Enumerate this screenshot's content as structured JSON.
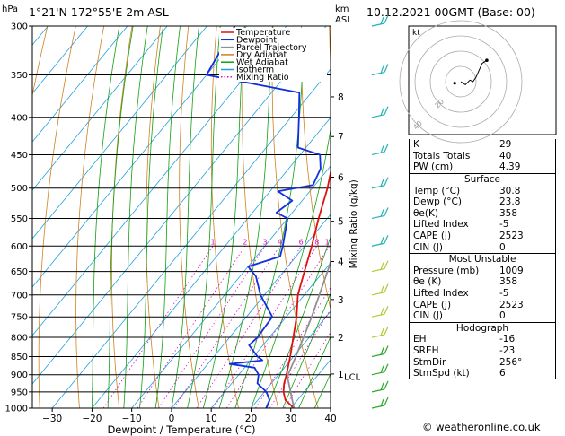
{
  "header": {
    "location": "1°21'N  172°55'E  2m  ASL",
    "datetime": "10.12.2021  00GMT  (Base: 00)"
  },
  "units": {
    "pressure": "hPa",
    "height": "km\nASL"
  },
  "footer": "© weatheronline.co.uk",
  "chart_data": {
    "type": "line",
    "subtype": "skew-T log-p diagram",
    "xlabel": "Dewpoint / Temperature (°C)",
    "ylabel": "",
    "mixing_ratio_label": "Mixing Ratio (g/kg)",
    "xlim": [
      -35,
      40
    ],
    "x_ticks": [
      -30,
      -20,
      -10,
      0,
      10,
      20,
      30,
      40
    ],
    "y_scale": "log",
    "ylim": [
      1000,
      300
    ],
    "pressure_levels": [
      300,
      350,
      400,
      450,
      500,
      550,
      600,
      650,
      700,
      750,
      800,
      850,
      900,
      950,
      1000
    ],
    "height_km_ticks": [
      {
        "label": "8",
        "p": 375
      },
      {
        "label": "7",
        "p": 425
      },
      {
        "label": "6",
        "p": 483
      },
      {
        "label": "5",
        "p": 555
      },
      {
        "label": "4",
        "p": 630
      },
      {
        "label": "3",
        "p": 710
      },
      {
        "label": "2",
        "p": 800
      },
      {
        "label": "1",
        "p": 898
      }
    ],
    "lcl": {
      "label": "LCL",
      "p": 905
    },
    "mixing_ratio_lines": [
      {
        "label": "1",
        "g": 1
      },
      {
        "label": "2",
        "g": 2
      },
      {
        "label": "3",
        "g": 3
      },
      {
        "label": "4",
        "g": 4
      },
      {
        "label": "6",
        "g": 6
      },
      {
        "label": "8",
        "g": 8
      },
      {
        "label": "10",
        "g": 10
      },
      {
        "label": "16",
        "g": 16
      },
      {
        "label": "20",
        "g": 20
      },
      {
        "label": "25",
        "g": 25
      }
    ],
    "legend": [
      {
        "name": "Temperature",
        "color": "#e01010",
        "style": "solid"
      },
      {
        "name": "Dewpoint",
        "color": "#1030e0",
        "style": "solid"
      },
      {
        "name": "Parcel Trajectory",
        "color": "#909090",
        "style": "solid"
      },
      {
        "name": "Dry Adiabat",
        "color": "#d08020",
        "style": "solid"
      },
      {
        "name": "Wet Adiabat",
        "color": "#10a010",
        "style": "solid"
      },
      {
        "name": "Isotherm",
        "color": "#20a0e0",
        "style": "solid"
      },
      {
        "name": "Mixing Ratio",
        "color": "#e010c0",
        "style": "dotted"
      }
    ],
    "series": [
      {
        "name": "Temperature",
        "color": "#e01010",
        "points": [
          {
            "p": 1000,
            "t": 30.8
          },
          {
            "p": 975,
            "t": 27.0
          },
          {
            "p": 950,
            "t": 24.8
          },
          {
            "p": 925,
            "t": 23.2
          },
          {
            "p": 900,
            "t": 22.0
          },
          {
            "p": 850,
            "t": 19.2
          },
          {
            "p": 800,
            "t": 16.0
          },
          {
            "p": 750,
            "t": 12.6
          },
          {
            "p": 700,
            "t": 8.4
          },
          {
            "p": 650,
            "t": 5.2
          },
          {
            "p": 600,
            "t": 1.8
          },
          {
            "p": 550,
            "t": -2.2
          },
          {
            "p": 500,
            "t": -6.2
          },
          {
            "p": 450,
            "t": -11.4
          },
          {
            "p": 400,
            "t": -17.4
          },
          {
            "p": 370,
            "t": -21.2
          },
          {
            "p": 350,
            "t": -24.2
          },
          {
            "p": 300,
            "t": -33.0
          }
        ]
      },
      {
        "name": "Dewpoint",
        "color": "#1030e0",
        "points": [
          {
            "p": 1000,
            "t": 23.8
          },
          {
            "p": 975,
            "t": 23.0
          },
          {
            "p": 950,
            "t": 20.5
          },
          {
            "p": 925,
            "t": 16.5
          },
          {
            "p": 900,
            "t": 15.0
          },
          {
            "p": 880,
            "t": 12.5
          },
          {
            "p": 870,
            "t": 5.5
          },
          {
            "p": 860,
            "t": 13.0
          },
          {
            "p": 850,
            "t": 11.0
          },
          {
            "p": 820,
            "t": 6.5
          },
          {
            "p": 800,
            "t": 7.0
          },
          {
            "p": 750,
            "t": 6.5
          },
          {
            "p": 700,
            "t": -1.0
          },
          {
            "p": 660,
            "t": -6.0
          },
          {
            "p": 640,
            "t": -10.0
          },
          {
            "p": 620,
            "t": -4.0
          },
          {
            "p": 600,
            "t": -5.5
          },
          {
            "p": 550,
            "t": -10.0
          },
          {
            "p": 540,
            "t": -14.0
          },
          {
            "p": 520,
            "t": -12.5
          },
          {
            "p": 505,
            "t": -18.0
          },
          {
            "p": 495,
            "t": -10.5
          },
          {
            "p": 470,
            "t": -12.0
          },
          {
            "p": 450,
            "t": -15.0
          },
          {
            "p": 440,
            "t": -22.0
          },
          {
            "p": 400,
            "t": -28.0
          },
          {
            "p": 370,
            "t": -33.0
          },
          {
            "p": 350,
            "t": -60.0
          },
          {
            "p": 300,
            "t": -63.0
          }
        ]
      },
      {
        "name": "Parcel Trajectory",
        "color": "#909090",
        "points": [
          {
            "p": 1000,
            "t": 30.8
          },
          {
            "p": 905,
            "t": 22.6
          },
          {
            "p": 850,
            "t": 20.6
          },
          {
            "p": 800,
            "t": 18.6
          },
          {
            "p": 750,
            "t": 16.4
          },
          {
            "p": 700,
            "t": 13.8
          },
          {
            "p": 650,
            "t": 11.0
          },
          {
            "p": 600,
            "t": 7.8
          },
          {
            "p": 550,
            "t": 4.2
          },
          {
            "p": 500,
            "t": 0.0
          },
          {
            "p": 450,
            "t": -5.0
          },
          {
            "p": 400,
            "t": -11.0
          },
          {
            "p": 350,
            "t": -18.5
          },
          {
            "p": 300,
            "t": -27.0
          }
        ]
      }
    ],
    "wind_barbs": [
      {
        "p": 300
      },
      {
        "p": 350
      },
      {
        "p": 400
      },
      {
        "p": 450
      },
      {
        "p": 500
      },
      {
        "p": 550
      },
      {
        "p": 600
      },
      {
        "p": 650
      },
      {
        "p": 700
      },
      {
        "p": 750
      },
      {
        "p": 800
      },
      {
        "p": 850
      },
      {
        "p": 900
      },
      {
        "p": 950
      },
      {
        "p": 1000
      }
    ],
    "hodograph": {
      "unit_label": "kt",
      "ring_labels": [
        "20",
        "40"
      ],
      "trace_kt": [
        [
          0,
          0
        ],
        [
          3,
          -2
        ],
        [
          6,
          1
        ],
        [
          8,
          0
        ],
        [
          10,
          3
        ],
        [
          14,
          12
        ],
        [
          17,
          14
        ]
      ],
      "storm_motion_kt": [
        -4,
        -1
      ]
    }
  },
  "indices": [
    {
      "label": "K",
      "value": "29"
    },
    {
      "label": "Totals Totals",
      "value": "40"
    },
    {
      "label": "PW (cm)",
      "value": "4.39"
    }
  ],
  "surface": {
    "title": "Surface",
    "rows": [
      {
        "label": "Temp (°C)",
        "value": "30.8"
      },
      {
        "label": "Dewp (°C)",
        "value": "23.8"
      },
      {
        "label": "θe(K)",
        "value": "358"
      },
      {
        "label": "Lifted Index",
        "value": "-5"
      },
      {
        "label": "CAPE (J)",
        "value": "2523"
      },
      {
        "label": "CIN (J)",
        "value": "0"
      }
    ]
  },
  "most_unstable": {
    "title": "Most Unstable",
    "rows": [
      {
        "label": "Pressure (mb)",
        "value": "1009"
      },
      {
        "label": "θe (K)",
        "value": "358"
      },
      {
        "label": "Lifted Index",
        "value": "-5"
      },
      {
        "label": "CAPE (J)",
        "value": "2523"
      },
      {
        "label": "CIN (J)",
        "value": "0"
      }
    ]
  },
  "hodograph_params": {
    "title": "Hodograph",
    "rows": [
      {
        "label": "EH",
        "value": "-16"
      },
      {
        "label": "SREH",
        "value": "-23"
      },
      {
        "label": "StmDir",
        "value": "256°"
      },
      {
        "label": "StmSpd (kt)",
        "value": "6"
      }
    ]
  }
}
